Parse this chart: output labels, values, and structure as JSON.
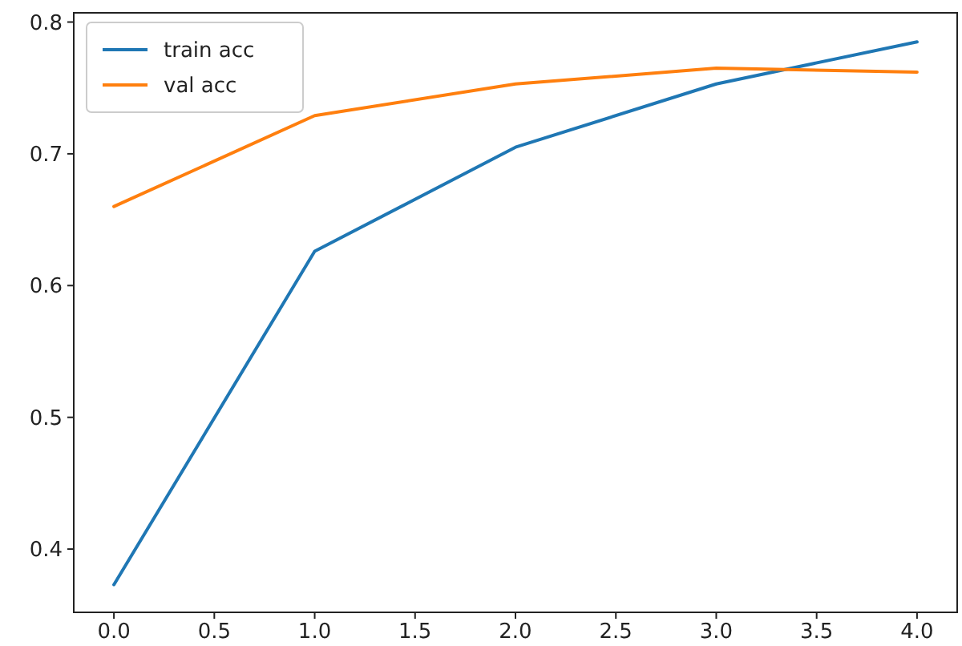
{
  "chart_data": {
    "type": "line",
    "x": [
      0,
      1,
      2,
      3,
      4
    ],
    "series": [
      {
        "name": "train acc",
        "color": "#1f77b4",
        "values": [
          0.373,
          0.626,
          0.705,
          0.753,
          0.785
        ]
      },
      {
        "name": "val acc",
        "color": "#ff7f0e",
        "values": [
          0.66,
          0.729,
          0.753,
          0.765,
          0.762
        ]
      }
    ],
    "xlim": [
      -0.2,
      4.2
    ],
    "xticks": [
      {
        "value": 0,
        "label": "0.0"
      },
      {
        "value": 0.5,
        "label": "0.5"
      },
      {
        "value": 1,
        "label": "1.0"
      },
      {
        "value": 1.5,
        "label": "1.5"
      },
      {
        "value": 2,
        "label": "2.0"
      },
      {
        "value": 2.5,
        "label": "2.5"
      },
      {
        "value": 3,
        "label": "3.0"
      },
      {
        "value": 3.5,
        "label": "3.5"
      },
      {
        "value": 4,
        "label": "4.0"
      }
    ],
    "ylim": [
      0.352,
      0.807
    ],
    "yticks": [
      0.4,
      0.5,
      0.6,
      0.7,
      0.8
    ],
    "legend": "top left",
    "grid": false,
    "marker": "none",
    "line_style": "solid"
  }
}
